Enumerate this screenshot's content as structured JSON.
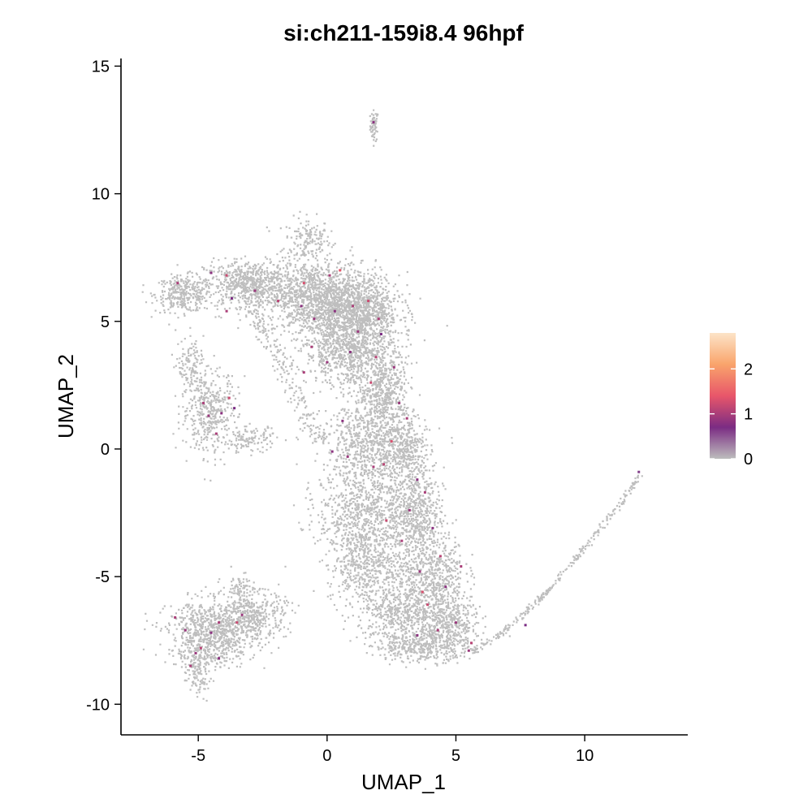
{
  "chart_data": {
    "type": "scatter",
    "title": "si:ch211-159i8.4 96hpf",
    "xlabel": "UMAP_1",
    "ylabel": "UMAP_2",
    "xlim": [
      -8,
      14
    ],
    "ylim": [
      -11.2,
      15.3
    ],
    "x_ticks": [
      -5,
      0,
      5,
      10
    ],
    "x_tick_labels": [
      "-5",
      "0",
      "5",
      "10"
    ],
    "y_ticks": [
      -10,
      -5,
      0,
      5,
      10,
      15
    ],
    "y_tick_labels": [
      "-10",
      "-5",
      "0",
      "5",
      "10",
      "15"
    ],
    "grid": false,
    "legend_position": "right",
    "colorbar": {
      "min": 0,
      "max": 2.8,
      "ticks": [
        0,
        1,
        2
      ],
      "tick_labels": [
        "0",
        "1",
        "2"
      ],
      "colors": [
        "#bdbdbd",
        "#7b2c83",
        "#e8566a",
        "#f9a46b",
        "#fce4c8"
      ]
    },
    "background_color": "#bebebe",
    "expressing_points": [
      {
        "x": -5.8,
        "y": 6.5,
        "v": 1.0
      },
      {
        "x": -4.5,
        "y": 6.9,
        "v": 0.8
      },
      {
        "x": -3.9,
        "y": 6.8,
        "v": 1.2
      },
      {
        "x": -2.8,
        "y": 6.2,
        "v": 0.9
      },
      {
        "x": -3.9,
        "y": 5.4,
        "v": 1.0
      },
      {
        "x": -3.7,
        "y": 5.9,
        "v": 0.7
      },
      {
        "x": -1.9,
        "y": 5.8,
        "v": 1.1
      },
      {
        "x": -1.0,
        "y": 5.6,
        "v": 0.8
      },
      {
        "x": -0.9,
        "y": 6.5,
        "v": 1.3
      },
      {
        "x": -0.5,
        "y": 5.1,
        "v": 0.9
      },
      {
        "x": 0.1,
        "y": 6.8,
        "v": 1.0
      },
      {
        "x": 0.5,
        "y": 7.0,
        "v": 1.4
      },
      {
        "x": 0.3,
        "y": 5.4,
        "v": 0.8
      },
      {
        "x": 1.0,
        "y": 5.6,
        "v": 1.0
      },
      {
        "x": 1.6,
        "y": 5.8,
        "v": 1.2
      },
      {
        "x": 1.2,
        "y": 4.6,
        "v": 0.9
      },
      {
        "x": -0.6,
        "y": 4.0,
        "v": 1.0
      },
      {
        "x": 0.9,
        "y": 3.8,
        "v": 0.8
      },
      {
        "x": 1.9,
        "y": 3.6,
        "v": 1.1
      },
      {
        "x": 0.0,
        "y": 3.4,
        "v": 0.9
      },
      {
        "x": -0.9,
        "y": 3.0,
        "v": 1.0
      },
      {
        "x": 2.1,
        "y": 4.5,
        "v": 0.7
      },
      {
        "x": 1.7,
        "y": 2.6,
        "v": 1.2
      },
      {
        "x": 2.8,
        "y": 1.8,
        "v": 0.9
      },
      {
        "x": 3.1,
        "y": 1.2,
        "v": 1.0
      },
      {
        "x": 2.5,
        "y": 0.3,
        "v": 1.3
      },
      {
        "x": 0.2,
        "y": -0.1,
        "v": 0.8
      },
      {
        "x": 0.8,
        "y": -0.3,
        "v": 0.9
      },
      {
        "x": 1.8,
        "y": -0.7,
        "v": 1.0
      },
      {
        "x": 2.2,
        "y": -0.6,
        "v": 1.1
      },
      {
        "x": 3.5,
        "y": -1.2,
        "v": 0.8
      },
      {
        "x": 3.8,
        "y": -1.7,
        "v": 1.0
      },
      {
        "x": 3.2,
        "y": -2.4,
        "v": 0.9
      },
      {
        "x": 2.3,
        "y": -2.8,
        "v": 1.2
      },
      {
        "x": 4.1,
        "y": -3.1,
        "v": 0.8
      },
      {
        "x": 2.9,
        "y": -3.6,
        "v": 1.0
      },
      {
        "x": 4.4,
        "y": -4.2,
        "v": 1.1
      },
      {
        "x": 3.6,
        "y": -4.8,
        "v": 0.9
      },
      {
        "x": 5.2,
        "y": -4.6,
        "v": 1.0
      },
      {
        "x": 4.6,
        "y": -5.4,
        "v": 0.8
      },
      {
        "x": 3.9,
        "y": -6.1,
        "v": 1.2
      },
      {
        "x": 5.0,
        "y": -6.8,
        "v": 0.9
      },
      {
        "x": 4.3,
        "y": -7.1,
        "v": 1.0
      },
      {
        "x": 3.5,
        "y": -7.3,
        "v": 0.8
      },
      {
        "x": 5.6,
        "y": -7.6,
        "v": 1.1
      },
      {
        "x": 5.5,
        "y": -7.9,
        "v": 0.9
      },
      {
        "x": 7.7,
        "y": -6.9,
        "v": 0.7
      },
      {
        "x": 12.1,
        "y": -0.9,
        "v": 0.6
      },
      {
        "x": 1.8,
        "y": 12.8,
        "v": 0.8
      },
      {
        "x": -4.8,
        "y": 1.8,
        "v": 1.0
      },
      {
        "x": -4.6,
        "y": 1.3,
        "v": 0.9
      },
      {
        "x": -3.8,
        "y": 2.0,
        "v": 1.2
      },
      {
        "x": -4.1,
        "y": 1.4,
        "v": 0.8
      },
      {
        "x": -4.3,
        "y": 0.6,
        "v": 1.0
      },
      {
        "x": -3.6,
        "y": 1.6,
        "v": 0.7
      },
      {
        "x": -5.9,
        "y": -6.6,
        "v": 1.0
      },
      {
        "x": -5.5,
        "y": -7.1,
        "v": 0.9
      },
      {
        "x": -4.9,
        "y": -7.8,
        "v": 1.1
      },
      {
        "x": -4.5,
        "y": -7.2,
        "v": 0.8
      },
      {
        "x": -4.2,
        "y": -6.8,
        "v": 1.0
      },
      {
        "x": -3.5,
        "y": -6.8,
        "v": 1.2
      },
      {
        "x": -3.3,
        "y": -6.5,
        "v": 0.9
      },
      {
        "x": -4.2,
        "y": -8.2,
        "v": 0.8
      },
      {
        "x": -5.3,
        "y": -8.5,
        "v": 1.0
      },
      {
        "x": -5.1,
        "y": -8.0,
        "v": 0.9
      },
      {
        "x": 2.0,
        "y": 5.1,
        "v": 1.0
      },
      {
        "x": 2.6,
        "y": 3.2,
        "v": 0.9
      },
      {
        "x": 0.6,
        "y": 1.1,
        "v": 0.8
      },
      {
        "x": 3.7,
        "y": -5.6,
        "v": 1.3
      }
    ]
  }
}
